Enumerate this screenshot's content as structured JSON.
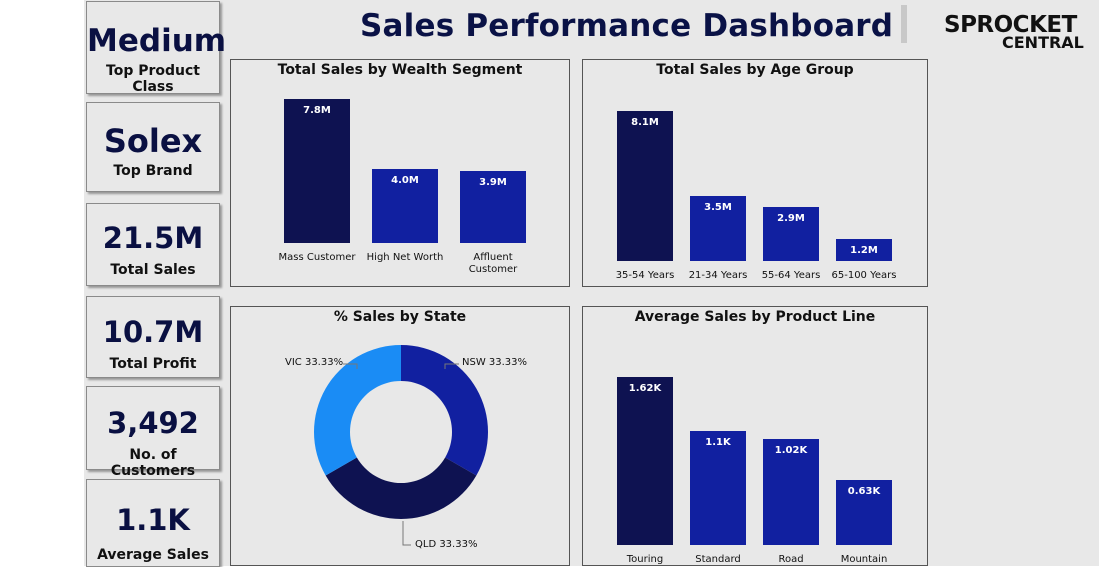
{
  "dashboard": {
    "title": "Sales Performance Dashboard",
    "logo": {
      "line1": "SPROCKET",
      "line2": "CENTRAL"
    }
  },
  "kpis": [
    {
      "value": "Medium",
      "label": "Top Product Class"
    },
    {
      "value": "Solex",
      "label": "Top Brand"
    },
    {
      "value": "21.5M",
      "label": "Total Sales"
    },
    {
      "value": "10.7M",
      "label": "Total Profit"
    },
    {
      "value": "3,492",
      "label": "No. of Customers"
    },
    {
      "value": "1.1K",
      "label": "Average Sales"
    }
  ],
  "colors": {
    "dark_navy": "#0e1251",
    "royal_blue": "#1120a0",
    "sky_blue": "#1a8cf5",
    "bg": "#e8e8e8"
  },
  "chart_data": [
    {
      "type": "bar",
      "title": "Total Sales by Wealth Segment",
      "categories": [
        "Mass Customer",
        "High Net Worth",
        "Affluent Customer"
      ],
      "values": [
        7.8,
        4.0,
        3.9
      ],
      "labels": [
        "7.8M",
        "4.0M",
        "3.9M"
      ],
      "ylim": [
        0,
        8.1
      ]
    },
    {
      "type": "bar",
      "title": "Total Sales by Age Group",
      "categories": [
        "35-54 Years",
        "21-34 Years",
        "55-64 Years",
        "65-100 Years"
      ],
      "values": [
        8.1,
        3.5,
        2.9,
        1.2
      ],
      "labels": [
        "8.1M",
        "3.5M",
        "2.9M",
        "1.2M"
      ],
      "ylim": [
        0,
        8.1
      ]
    },
    {
      "type": "pie",
      "title": "% Sales by State",
      "slices": [
        {
          "name": "NSW",
          "value": 33.33,
          "label": "NSW 33.33%"
        },
        {
          "name": "QLD",
          "value": 33.33,
          "label": "QLD 33.33%"
        },
        {
          "name": "VIC",
          "value": 33.33,
          "label": "VIC 33.33%"
        }
      ]
    },
    {
      "type": "bar",
      "title": "Average Sales by Product Line",
      "categories": [
        "Touring",
        "Standard",
        "Road",
        "Mountain"
      ],
      "values": [
        1.62,
        1.1,
        1.02,
        0.63
      ],
      "labels": [
        "1.62K",
        "1.1K",
        "1.02K",
        "0.63K"
      ],
      "ylim": [
        0,
        1.62
      ]
    }
  ]
}
